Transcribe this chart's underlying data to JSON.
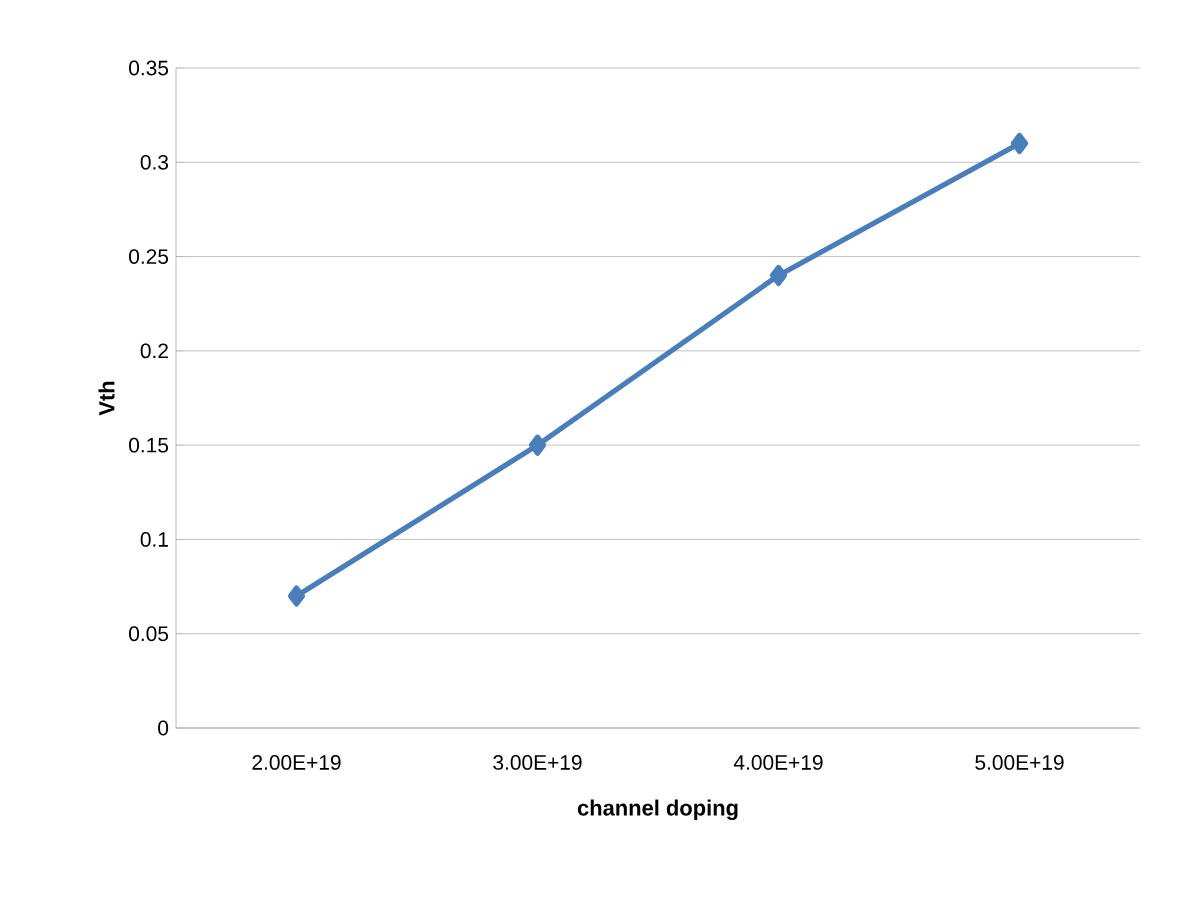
{
  "chart_data": {
    "type": "line",
    "xlabel": "channel doping",
    "ylabel": "Vth",
    "categories": [
      "2.00E+19",
      "3.00E+19",
      "4.00E+19",
      "5.00E+19"
    ],
    "values": [
      0.07,
      0.15,
      0.24,
      0.31
    ],
    "color": "#4a7ebb",
    "ylim": [
      0,
      0.35
    ],
    "yticks": [
      0,
      0.05,
      0.1,
      0.15,
      0.2,
      0.25,
      0.3,
      0.35
    ],
    "grid": "y",
    "marker": "diamond",
    "line_style": "solid"
  }
}
